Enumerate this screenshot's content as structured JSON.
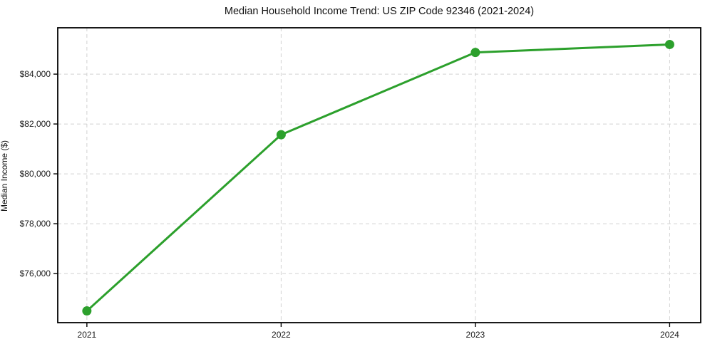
{
  "chart_data": {
    "type": "line",
    "title": "Median Household Income Trend: US ZIP Code 92346 (2021-2024)",
    "xlabel": "",
    "ylabel": "Median Income ($)",
    "x": [
      2021,
      2022,
      2023,
      2024
    ],
    "x_tick_labels": [
      "2021",
      "2022",
      "2023",
      "2024"
    ],
    "series": [
      {
        "name": "Median Household Income",
        "values": [
          74500,
          81570,
          84870,
          85190
        ]
      }
    ],
    "y_ticks": [
      76000,
      78000,
      80000,
      82000,
      84000
    ],
    "y_tick_labels": [
      "$76,000",
      "$78,000",
      "$80,000",
      "$82,000",
      "$84,000"
    ],
    "xlim": [
      2020.85,
      2024.16
    ],
    "ylim": [
      74030,
      85860
    ],
    "grid": true,
    "grid_style": "dashed",
    "legend": "none",
    "marker": "circle"
  },
  "colors": {
    "line": "#2ca02c",
    "marker": "#2ca02c",
    "grid": "#d2d2d2",
    "spine": "#000000",
    "tick_text": "#1a1a1a",
    "background": "#ffffff"
  }
}
